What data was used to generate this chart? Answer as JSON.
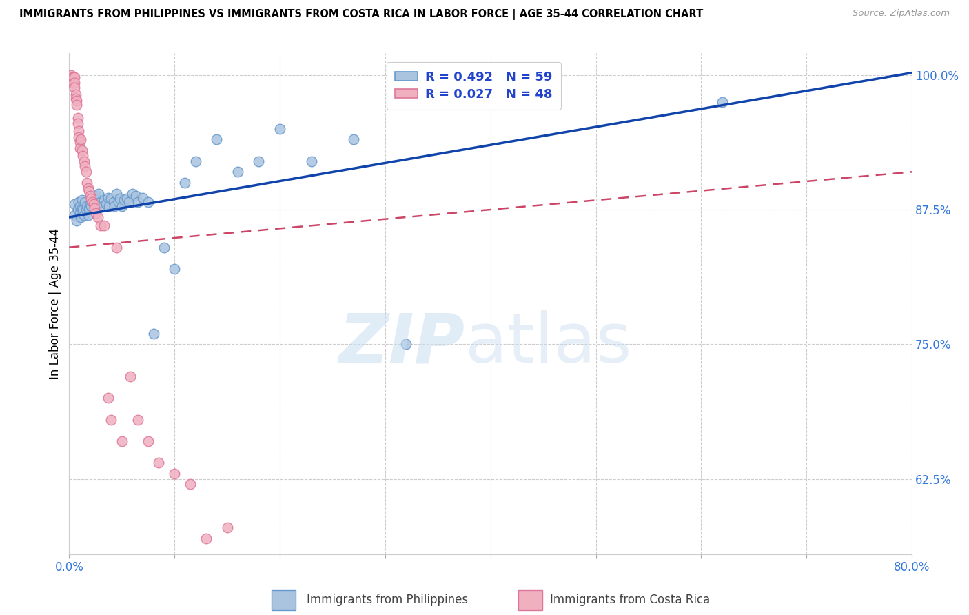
{
  "title": "IMMIGRANTS FROM PHILIPPINES VS IMMIGRANTS FROM COSTA RICA IN LABOR FORCE | AGE 35-44 CORRELATION CHART",
  "source": "Source: ZipAtlas.com",
  "ylabel": "In Labor Force | Age 35-44",
  "x_min": 0.0,
  "x_max": 0.8,
  "y_min": 0.555,
  "y_max": 1.02,
  "y_ticks": [
    0.625,
    0.75,
    0.875,
    1.0
  ],
  "y_tick_labels": [
    "62.5%",
    "75.0%",
    "87.5%",
    "100.0%"
  ],
  "legend_r_blue": "R = 0.492",
  "legend_n_blue": "N = 59",
  "legend_r_pink": "R = 0.027",
  "legend_n_pink": "N = 48",
  "blue_edge": "#6699cc",
  "blue_face": "#aac4e0",
  "pink_edge": "#dd7799",
  "pink_face": "#f0b0c0",
  "trend_blue": "#1144aa",
  "trend_pink": "#cc4466",
  "blue_x": [
    0.005,
    0.005,
    0.007,
    0.008,
    0.009,
    0.01,
    0.01,
    0.011,
    0.012,
    0.012,
    0.013,
    0.014,
    0.015,
    0.016,
    0.017,
    0.018,
    0.019,
    0.02,
    0.021,
    0.022,
    0.023,
    0.025,
    0.026,
    0.027,
    0.028,
    0.03,
    0.032,
    0.033,
    0.035,
    0.037,
    0.038,
    0.04,
    0.042,
    0.043,
    0.045,
    0.047,
    0.048,
    0.05,
    0.052,
    0.055,
    0.057,
    0.06,
    0.063,
    0.065,
    0.07,
    0.075,
    0.08,
    0.09,
    0.1,
    0.11,
    0.12,
    0.14,
    0.16,
    0.18,
    0.2,
    0.23,
    0.27,
    0.32,
    0.62
  ],
  "blue_y": [
    0.88,
    0.87,
    0.865,
    0.875,
    0.882,
    0.872,
    0.878,
    0.868,
    0.876,
    0.884,
    0.875,
    0.87,
    0.882,
    0.875,
    0.878,
    0.87,
    0.876,
    0.88,
    0.878,
    0.884,
    0.882,
    0.888,
    0.878,
    0.884,
    0.89,
    0.882,
    0.878,
    0.884,
    0.88,
    0.886,
    0.878,
    0.885,
    0.882,
    0.878,
    0.89,
    0.882,
    0.885,
    0.878,
    0.884,
    0.885,
    0.882,
    0.89,
    0.888,
    0.882,
    0.886,
    0.882,
    0.76,
    0.84,
    0.82,
    0.9,
    0.92,
    0.94,
    0.91,
    0.92,
    0.95,
    0.92,
    0.94,
    0.75,
    0.975
  ],
  "pink_x": [
    0.002,
    0.003,
    0.003,
    0.004,
    0.004,
    0.005,
    0.005,
    0.005,
    0.006,
    0.006,
    0.007,
    0.007,
    0.008,
    0.008,
    0.009,
    0.009,
    0.01,
    0.01,
    0.011,
    0.012,
    0.013,
    0.014,
    0.015,
    0.016,
    0.017,
    0.018,
    0.019,
    0.02,
    0.021,
    0.022,
    0.023,
    0.024,
    0.025,
    0.027,
    0.03,
    0.033,
    0.037,
    0.04,
    0.045,
    0.05,
    0.058,
    0.065,
    0.075,
    0.085,
    0.1,
    0.115,
    0.13,
    0.15
  ],
  "pink_y": [
    1.0,
    0.998,
    0.993,
    0.998,
    0.993,
    0.998,
    0.993,
    0.988,
    0.982,
    0.978,
    0.976,
    0.972,
    0.96,
    0.955,
    0.948,
    0.942,
    0.938,
    0.932,
    0.94,
    0.93,
    0.925,
    0.92,
    0.915,
    0.91,
    0.9,
    0.895,
    0.892,
    0.888,
    0.885,
    0.882,
    0.88,
    0.876,
    0.872,
    0.868,
    0.86,
    0.86,
    0.7,
    0.68,
    0.84,
    0.66,
    0.72,
    0.68,
    0.66,
    0.64,
    0.63,
    0.62,
    0.57,
    0.58
  ],
  "trend_blue_x0": 0.0,
  "trend_blue_y0": 0.868,
  "trend_blue_x1": 0.8,
  "trend_blue_y1": 1.002,
  "trend_pink_x0": 0.0,
  "trend_pink_y0": 0.84,
  "trend_pink_x1": 0.8,
  "trend_pink_y1": 0.91
}
